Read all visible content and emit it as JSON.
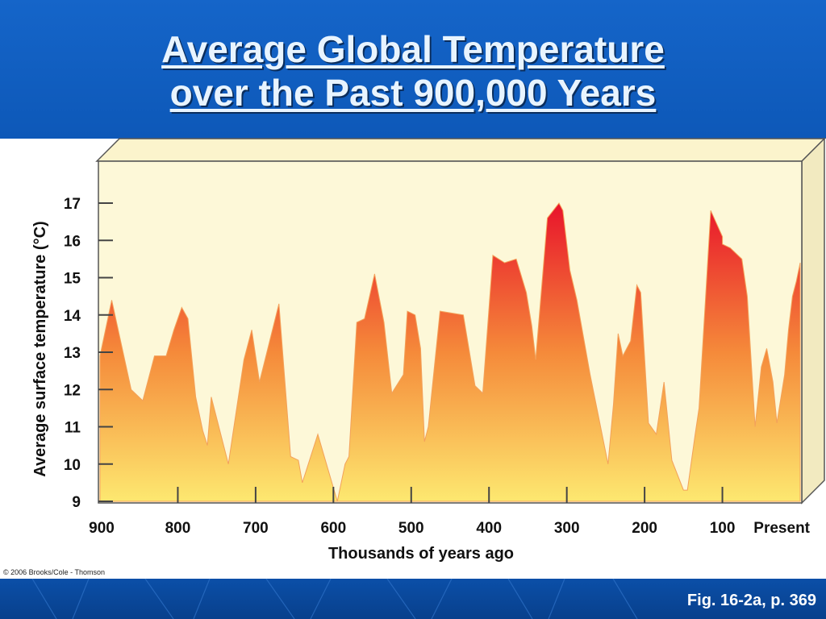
{
  "slide": {
    "title_line1": "Average Global Temperature",
    "title_line2": "over the Past 900,000 Years",
    "copyright": "© 2006 Brooks/Cole - Thomson",
    "figure_ref": "Fig. 16-2a, p. 369"
  },
  "colors": {
    "header": "#1565c9",
    "plot_background": "#fdf8d8",
    "area_top": "#e8132b",
    "area_mid": "#f58a3a",
    "area_bottom": "#fde870"
  },
  "chart_data": {
    "type": "area",
    "title": "Average Global Temperature over the Past 900,000 Years",
    "xlabel": "Thousands of years ago",
    "ylabel": "Average surface temperature (°C)",
    "xlim": [
      900,
      0
    ],
    "ylim": [
      9,
      17.5
    ],
    "x_ticks": [
      900,
      800,
      700,
      600,
      500,
      400,
      300,
      200,
      100,
      0
    ],
    "x_tick_labels": [
      "900",
      "800",
      "700",
      "600",
      "500",
      "400",
      "300",
      "200",
      "100",
      "Present"
    ],
    "y_ticks": [
      9,
      10,
      11,
      12,
      13,
      14,
      15,
      16,
      17
    ],
    "y_tick_labels": [
      "9",
      "10",
      "11",
      "12",
      "13",
      "14",
      "15",
      "16",
      "17"
    ],
    "grid": false,
    "series": [
      {
        "x": [
          900,
          885,
          860,
          845,
          830,
          815,
          805,
          795,
          787,
          777,
          768,
          762,
          757,
          735,
          715,
          705,
          695,
          670,
          655,
          645,
          640,
          620,
          595,
          585,
          580,
          570,
          560,
          547,
          535,
          525,
          510,
          505,
          495,
          488,
          483,
          478,
          463,
          433,
          418,
          408,
          395,
          380,
          365,
          352,
          345,
          340,
          325,
          310,
          305,
          296,
          287,
          270,
          247,
          240,
          234,
          228,
          218,
          210,
          205,
          195,
          185,
          175,
          165,
          150,
          145,
          135,
          130,
          115,
          100,
          100,
          90,
          75,
          68,
          58,
          50,
          43,
          35,
          30,
          20,
          15,
          10,
          5,
          0
        ],
        "y": [
          12.9,
          14.4,
          12.0,
          11.7,
          12.9,
          12.9,
          13.6,
          14.2,
          13.9,
          11.8,
          10.9,
          10.5,
          11.8,
          10.0,
          12.8,
          13.6,
          12.2,
          14.3,
          10.2,
          10.1,
          9.5,
          10.8,
          9.0,
          10.0,
          10.2,
          13.8,
          13.9,
          15.1,
          13.8,
          11.9,
          12.4,
          14.1,
          14.0,
          13.1,
          10.6,
          11.0,
          14.1,
          14.0,
          12.1,
          11.9,
          15.6,
          15.4,
          15.5,
          14.6,
          13.7,
          12.8,
          16.6,
          17.0,
          16.8,
          15.2,
          14.4,
          12.4,
          10.0,
          11.6,
          13.5,
          12.9,
          13.3,
          14.8,
          14.6,
          11.1,
          10.8,
          12.2,
          10.1,
          9.3,
          9.3,
          10.8,
          11.5,
          16.8,
          16.1,
          15.9,
          15.8,
          15.5,
          14.5,
          11.0,
          12.6,
          13.1,
          12.2,
          11.1,
          12.4,
          13.6,
          14.5,
          14.9,
          15.4
        ]
      }
    ]
  }
}
